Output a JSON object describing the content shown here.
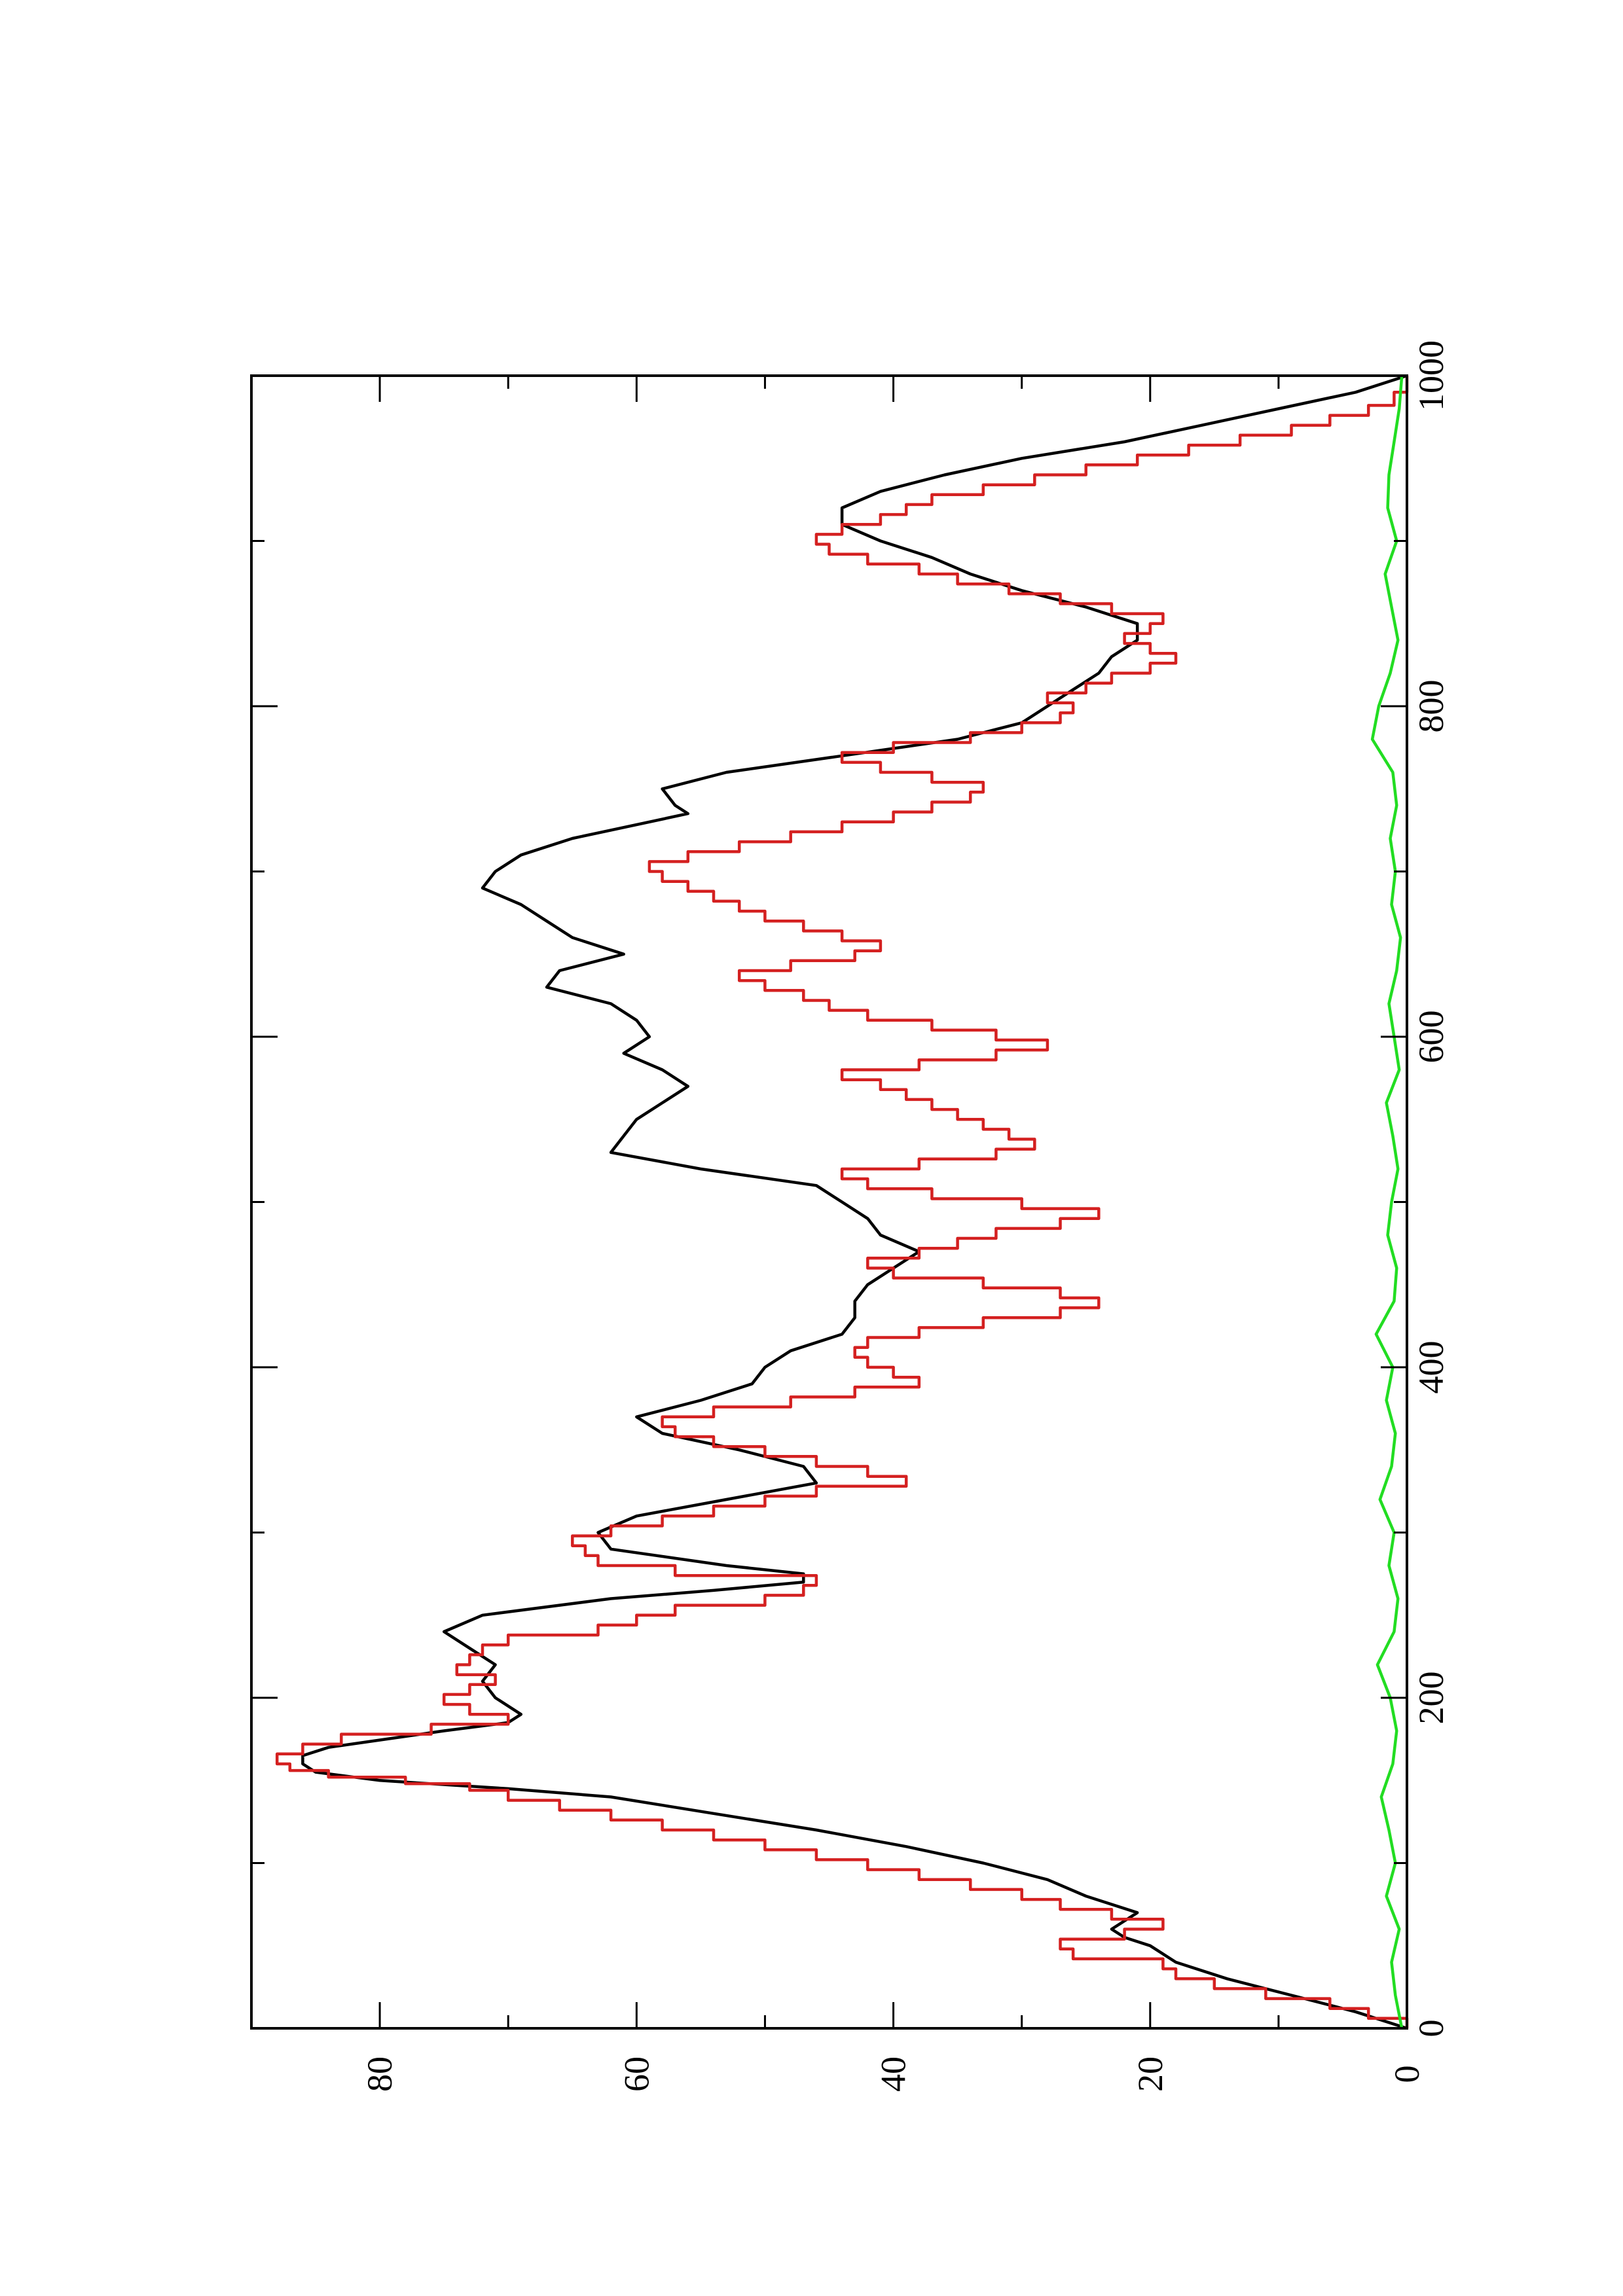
{
  "chart_data": {
    "type": "line",
    "orientation": "rotated 90 degrees counter-clockwise (page in landscape)",
    "title": "",
    "xlabel": "",
    "ylabel": "",
    "xlim": [
      0,
      1000
    ],
    "ylim": [
      0,
      90
    ],
    "x_ticks": [
      0,
      200,
      400,
      600,
      800,
      1000
    ],
    "x_tick_labels": [
      "0",
      "200",
      "400",
      "600",
      "800",
      "1000"
    ],
    "x_minor_ticks": [
      100,
      300,
      500,
      700,
      900
    ],
    "y_ticks": [
      0,
      20,
      40,
      60,
      80
    ],
    "y_tick_labels": [
      "0",
      "20",
      "40",
      "60",
      "80"
    ],
    "y_minor_ticks": [
      10,
      30,
      50,
      70
    ],
    "grid": false,
    "legend": "none",
    "series": [
      {
        "color": "#000000",
        "step": false,
        "points": [
          [
            0,
            0
          ],
          [
            10,
            4
          ],
          [
            20,
            9
          ],
          [
            30,
            14
          ],
          [
            40,
            18
          ],
          [
            50,
            20
          ],
          [
            55,
            22
          ],
          [
            60,
            23
          ],
          [
            65,
            22
          ],
          [
            70,
            21
          ],
          [
            80,
            25
          ],
          [
            90,
            28
          ],
          [
            100,
            33
          ],
          [
            110,
            39
          ],
          [
            120,
            46
          ],
          [
            130,
            54
          ],
          [
            140,
            62
          ],
          [
            145,
            70
          ],
          [
            150,
            80
          ],
          [
            155,
            85
          ],
          [
            160,
            86
          ],
          [
            165,
            86
          ],
          [
            170,
            84
          ],
          [
            180,
            75
          ],
          [
            185,
            70
          ],
          [
            190,
            69
          ],
          [
            200,
            71
          ],
          [
            210,
            72
          ],
          [
            220,
            71
          ],
          [
            230,
            73
          ],
          [
            240,
            75
          ],
          [
            250,
            72
          ],
          [
            260,
            62
          ],
          [
            265,
            54
          ],
          [
            270,
            47
          ],
          [
            275,
            47
          ],
          [
            280,
            53
          ],
          [
            290,
            62
          ],
          [
            300,
            63
          ],
          [
            310,
            60
          ],
          [
            320,
            53
          ],
          [
            330,
            46
          ],
          [
            340,
            47
          ],
          [
            350,
            52
          ],
          [
            360,
            58
          ],
          [
            370,
            60
          ],
          [
            380,
            55
          ],
          [
            390,
            51
          ],
          [
            400,
            50
          ],
          [
            410,
            48
          ],
          [
            420,
            44
          ],
          [
            430,
            43
          ],
          [
            440,
            43
          ],
          [
            450,
            42
          ],
          [
            460,
            40
          ],
          [
            470,
            38
          ],
          [
            480,
            41
          ],
          [
            490,
            42
          ],
          [
            500,
            44
          ],
          [
            510,
            46
          ],
          [
            520,
            55
          ],
          [
            530,
            62
          ],
          [
            540,
            61
          ],
          [
            550,
            60
          ],
          [
            560,
            58
          ],
          [
            570,
            56
          ],
          [
            580,
            58
          ],
          [
            590,
            61
          ],
          [
            600,
            59
          ],
          [
            610,
            60
          ],
          [
            620,
            62
          ],
          [
            630,
            67
          ],
          [
            640,
            66
          ],
          [
            650,
            61
          ],
          [
            660,
            65
          ],
          [
            670,
            67
          ],
          [
            680,
            69
          ],
          [
            690,
            72
          ],
          [
            700,
            71
          ],
          [
            710,
            69
          ],
          [
            720,
            65
          ],
          [
            730,
            59
          ],
          [
            735,
            56
          ],
          [
            740,
            57
          ],
          [
            750,
            58
          ],
          [
            760,
            53
          ],
          [
            770,
            44
          ],
          [
            780,
            35
          ],
          [
            790,
            30
          ],
          [
            800,
            28
          ],
          [
            810,
            26
          ],
          [
            820,
            24
          ],
          [
            830,
            23
          ],
          [
            840,
            21
          ],
          [
            850,
            21
          ],
          [
            860,
            25
          ],
          [
            870,
            30
          ],
          [
            880,
            34
          ],
          [
            890,
            37
          ],
          [
            900,
            41
          ],
          [
            910,
            44
          ],
          [
            920,
            44
          ],
          [
            930,
            41
          ],
          [
            940,
            36
          ],
          [
            950,
            30
          ],
          [
            960,
            22
          ],
          [
            970,
            16
          ],
          [
            980,
            10
          ],
          [
            990,
            4
          ],
          [
            1000,
            0
          ]
        ]
      },
      {
        "color": "#d42020",
        "step": true,
        "points": [
          [
            0,
            0
          ],
          [
            6,
            3
          ],
          [
            12,
            6
          ],
          [
            18,
            11
          ],
          [
            24,
            15
          ],
          [
            30,
            18
          ],
          [
            36,
            19
          ],
          [
            42,
            26
          ],
          [
            48,
            27
          ],
          [
            54,
            22
          ],
          [
            60,
            19
          ],
          [
            66,
            23
          ],
          [
            72,
            27
          ],
          [
            78,
            30
          ],
          [
            84,
            34
          ],
          [
            90,
            38
          ],
          [
            96,
            42
          ],
          [
            102,
            46
          ],
          [
            108,
            50
          ],
          [
            114,
            54
          ],
          [
            120,
            58
          ],
          [
            126,
            62
          ],
          [
            132,
            66
          ],
          [
            138,
            70
          ],
          [
            144,
            73
          ],
          [
            148,
            78
          ],
          [
            152,
            84
          ],
          [
            156,
            87
          ],
          [
            160,
            88
          ],
          [
            166,
            86
          ],
          [
            172,
            83
          ],
          [
            178,
            76
          ],
          [
            184,
            70
          ],
          [
            190,
            73
          ],
          [
            196,
            75
          ],
          [
            202,
            73
          ],
          [
            208,
            71
          ],
          [
            214,
            74
          ],
          [
            220,
            73
          ],
          [
            226,
            72
          ],
          [
            232,
            70
          ],
          [
            238,
            63
          ],
          [
            244,
            60
          ],
          [
            250,
            57
          ],
          [
            256,
            50
          ],
          [
            262,
            47
          ],
          [
            268,
            46
          ],
          [
            274,
            57
          ],
          [
            280,
            63
          ],
          [
            286,
            64
          ],
          [
            292,
            65
          ],
          [
            298,
            62
          ],
          [
            304,
            58
          ],
          [
            310,
            54
          ],
          [
            316,
            50
          ],
          [
            322,
            46
          ],
          [
            328,
            39
          ],
          [
            334,
            42
          ],
          [
            340,
            46
          ],
          [
            346,
            50
          ],
          [
            352,
            54
          ],
          [
            358,
            57
          ],
          [
            364,
            58
          ],
          [
            370,
            54
          ],
          [
            376,
            48
          ],
          [
            382,
            43
          ],
          [
            388,
            38
          ],
          [
            394,
            40
          ],
          [
            400,
            42
          ],
          [
            406,
            43
          ],
          [
            412,
            42
          ],
          [
            418,
            38
          ],
          [
            424,
            33
          ],
          [
            430,
            27
          ],
          [
            436,
            24
          ],
          [
            442,
            27
          ],
          [
            448,
            33
          ],
          [
            454,
            40
          ],
          [
            460,
            42
          ],
          [
            466,
            38
          ],
          [
            472,
            35
          ],
          [
            478,
            32
          ],
          [
            484,
            27
          ],
          [
            490,
            24
          ],
          [
            496,
            30
          ],
          [
            502,
            37
          ],
          [
            508,
            42
          ],
          [
            514,
            44
          ],
          [
            520,
            38
          ],
          [
            526,
            32
          ],
          [
            532,
            29
          ],
          [
            538,
            31
          ],
          [
            544,
            33
          ],
          [
            550,
            35
          ],
          [
            556,
            37
          ],
          [
            562,
            39
          ],
          [
            568,
            41
          ],
          [
            574,
            44
          ],
          [
            580,
            38
          ],
          [
            586,
            32
          ],
          [
            592,
            28
          ],
          [
            598,
            32
          ],
          [
            604,
            37
          ],
          [
            610,
            42
          ],
          [
            616,
            45
          ],
          [
            622,
            47
          ],
          [
            628,
            50
          ],
          [
            634,
            52
          ],
          [
            640,
            48
          ],
          [
            646,
            43
          ],
          [
            652,
            41
          ],
          [
            658,
            44
          ],
          [
            664,
            47
          ],
          [
            670,
            50
          ],
          [
            676,
            52
          ],
          [
            682,
            54
          ],
          [
            688,
            56
          ],
          [
            694,
            58
          ],
          [
            700,
            59
          ],
          [
            706,
            56
          ],
          [
            712,
            52
          ],
          [
            718,
            48
          ],
          [
            724,
            44
          ],
          [
            730,
            40
          ],
          [
            736,
            37
          ],
          [
            742,
            34
          ],
          [
            748,
            33
          ],
          [
            754,
            37
          ],
          [
            760,
            41
          ],
          [
            766,
            44
          ],
          [
            772,
            40
          ],
          [
            778,
            34
          ],
          [
            784,
            30
          ],
          [
            790,
            27
          ],
          [
            796,
            26
          ],
          [
            802,
            28
          ],
          [
            808,
            25
          ],
          [
            814,
            23
          ],
          [
            820,
            20
          ],
          [
            826,
            18
          ],
          [
            832,
            20
          ],
          [
            838,
            22
          ],
          [
            844,
            20
          ],
          [
            850,
            19
          ],
          [
            856,
            23
          ],
          [
            862,
            27
          ],
          [
            868,
            31
          ],
          [
            874,
            35
          ],
          [
            880,
            38
          ],
          [
            886,
            42
          ],
          [
            892,
            45
          ],
          [
            898,
            46
          ],
          [
            904,
            44
          ],
          [
            910,
            41
          ],
          [
            916,
            39
          ],
          [
            922,
            37
          ],
          [
            928,
            33
          ],
          [
            934,
            29
          ],
          [
            940,
            25
          ],
          [
            946,
            21
          ],
          [
            952,
            17
          ],
          [
            958,
            13
          ],
          [
            964,
            9
          ],
          [
            970,
            6
          ],
          [
            976,
            3
          ],
          [
            982,
            1
          ],
          [
            990,
            0
          ],
          [
            1000,
            0
          ]
        ]
      },
      {
        "color": "#22dd22",
        "step": false,
        "points": [
          [
            0,
            0.4
          ],
          [
            20,
            0.9
          ],
          [
            40,
            1.2
          ],
          [
            60,
            0.6
          ],
          [
            80,
            1.6
          ],
          [
            100,
            0.9
          ],
          [
            120,
            1.4
          ],
          [
            140,
            2.0
          ],
          [
            160,
            1.1
          ],
          [
            180,
            0.8
          ],
          [
            200,
            1.3
          ],
          [
            220,
            2.3
          ],
          [
            240,
            1.0
          ],
          [
            260,
            0.7
          ],
          [
            280,
            1.4
          ],
          [
            300,
            1.0
          ],
          [
            320,
            2.1
          ],
          [
            340,
            1.2
          ],
          [
            360,
            0.9
          ],
          [
            380,
            1.6
          ],
          [
            400,
            1.1
          ],
          [
            420,
            2.4
          ],
          [
            440,
            1.0
          ],
          [
            460,
            0.8
          ],
          [
            480,
            1.5
          ],
          [
            500,
            1.2
          ],
          [
            520,
            0.7
          ],
          [
            540,
            1.1
          ],
          [
            560,
            1.6
          ],
          [
            580,
            0.6
          ],
          [
            600,
            1.0
          ],
          [
            620,
            1.4
          ],
          [
            640,
            0.8
          ],
          [
            660,
            0.5
          ],
          [
            680,
            1.2
          ],
          [
            700,
            0.9
          ],
          [
            720,
            1.3
          ],
          [
            740,
            0.8
          ],
          [
            760,
            1.1
          ],
          [
            780,
            2.7
          ],
          [
            800,
            2.2
          ],
          [
            820,
            1.3
          ],
          [
            840,
            0.7
          ],
          [
            860,
            1.2
          ],
          [
            880,
            1.7
          ],
          [
            900,
            0.8
          ],
          [
            920,
            1.5
          ],
          [
            940,
            1.4
          ],
          [
            960,
            1.0
          ],
          [
            980,
            0.6
          ],
          [
            1000,
            0.4
          ]
        ]
      }
    ]
  }
}
